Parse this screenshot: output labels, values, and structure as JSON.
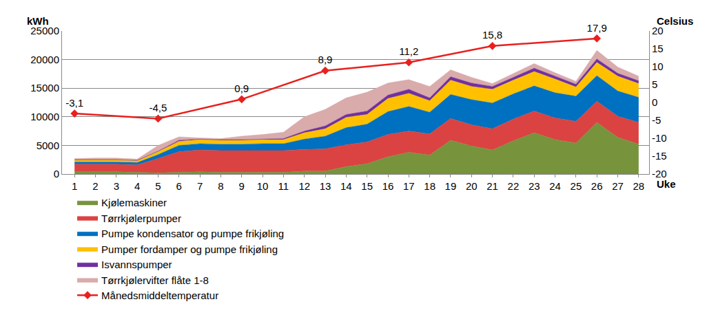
{
  "chart_data": {
    "type": "area",
    "stacked": true,
    "grid": true,
    "legend": "bottom",
    "x_label": "Uke",
    "y_label": "kWh",
    "y2_label": "Celsius",
    "x": [
      1,
      2,
      3,
      4,
      5,
      6,
      7,
      8,
      9,
      10,
      11,
      12,
      13,
      14,
      15,
      16,
      17,
      18,
      19,
      20,
      21,
      22,
      23,
      24,
      25,
      26,
      27,
      28
    ],
    "xlim": [
      0.4,
      28.5
    ],
    "xticks": [
      1,
      2,
      3,
      4,
      5,
      6,
      7,
      8,
      9,
      10,
      11,
      12,
      13,
      14,
      15,
      16,
      17,
      18,
      19,
      20,
      21,
      22,
      23,
      24,
      25,
      26,
      27,
      28
    ],
    "ylim": [
      0,
      25000
    ],
    "yticks": [
      0,
      5000,
      10000,
      15000,
      20000,
      25000
    ],
    "y2lim": [
      -20,
      20
    ],
    "y2ticks": [
      -20,
      -15,
      -10,
      -5,
      0,
      5,
      10,
      15,
      20
    ],
    "series": [
      {
        "name": "Kjølemaskiner",
        "color": "#77933C",
        "values": [
          400,
          400,
          400,
          300,
          200,
          300,
          400,
          300,
          300,
          300,
          300,
          500,
          500,
          1300,
          1800,
          3000,
          3800,
          3300,
          5900,
          4900,
          4200,
          5800,
          7200,
          6000,
          5400,
          9000,
          6400,
          5200
        ]
      },
      {
        "name": "Tørrkjølerpumper",
        "color": "#DA4341",
        "values": [
          1300,
          1300,
          1300,
          1300,
          2500,
          3600,
          3800,
          3800,
          3800,
          3800,
          3800,
          3800,
          3900,
          3800,
          3800,
          3900,
          3700,
          3700,
          3800,
          3700,
          3700,
          3800,
          3800,
          3800,
          3800,
          3700,
          3700,
          3800
        ]
      },
      {
        "name": "Pumpe kondensator og pumpe frikjøling",
        "color": "#0070C0",
        "values": [
          400,
          400,
          400,
          400,
          700,
          1100,
          1100,
          1100,
          1100,
          1200,
          1200,
          1800,
          2200,
          3000,
          3100,
          4000,
          4300,
          3800,
          4200,
          4400,
          4500,
          4400,
          4400,
          4400,
          4400,
          4500,
          4400,
          4400
        ]
      },
      {
        "name": "Pumper fordamper og pumpe frikjøling",
        "color": "#FFC000",
        "values": [
          300,
          300,
          300,
          300,
          500,
          700,
          700,
          700,
          700,
          700,
          700,
          1100,
          1300,
          1800,
          1700,
          2300,
          2300,
          2000,
          2500,
          2300,
          2400,
          2400,
          2500,
          2400,
          1600,
          2300,
          2600,
          2400
        ]
      },
      {
        "name": "Isvannspumper",
        "color": "#7030A0",
        "values": [
          100,
          100,
          100,
          100,
          100,
          200,
          100,
          100,
          100,
          100,
          200,
          300,
          500,
          500,
          600,
          600,
          700,
          500,
          600,
          600,
          500,
          500,
          600,
          500,
          500,
          600,
          500,
          500
        ]
      },
      {
        "name": "Tørrkjølervifter flåte 1-8",
        "color": "#D9ABAB",
        "values": [
          200,
          300,
          300,
          200,
          1000,
          600,
          200,
          200,
          600,
          800,
          1100,
          2500,
          2900,
          2900,
          3300,
          2100,
          1700,
          2000,
          1200,
          1000,
          500,
          700,
          800,
          600,
          500,
          1500,
          1100,
          800
        ]
      },
      {
        "name": "Månedsmiddeltemperatur",
        "color": "#E8201E",
        "type": "line",
        "axis": "y2",
        "marker": "diamond",
        "line_style": "solid",
        "data_labels": true,
        "x": [
          1,
          5,
          9,
          13,
          17,
          21,
          26
        ],
        "values": [
          -3.1,
          -4.5,
          0.9,
          8.9,
          11.2,
          15.8,
          17.9
        ],
        "value_labels": [
          "-3,1",
          "-4,5",
          "0,9",
          "8,9",
          "11,2",
          "15,8",
          "17,9"
        ]
      }
    ]
  }
}
